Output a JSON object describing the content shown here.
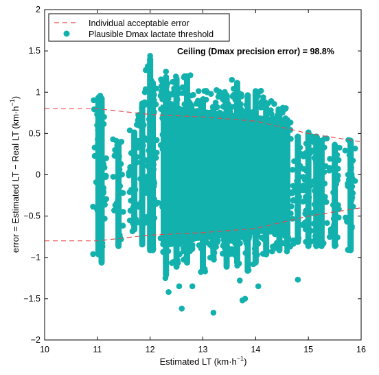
{
  "chart_data": {
    "type": "scatter",
    "xlabel": "Estimated LT (km·h",
    "xlabel_sup": "−1",
    "xlabel_end": ")",
    "ylabel": "error = Estimated LT − Real LT (km·h",
    "ylabel_sup": "−1",
    "ylabel_end": ")",
    "xlim": [
      10,
      16
    ],
    "ylim": [
      -2,
      2
    ],
    "xticks": [
      10,
      11,
      12,
      13,
      14,
      15,
      16
    ],
    "yticks": [
      -2,
      -1.5,
      -1,
      -0.5,
      0,
      0.5,
      1,
      1.5,
      2
    ],
    "xtick_labels": [
      "10",
      "11",
      "12",
      "13",
      "14",
      "15",
      "16"
    ],
    "ytick_labels": [
      "−2",
      "−1.5",
      "−1",
      "−0.5",
      "0",
      "0.5",
      "1",
      "1.5",
      "2"
    ],
    "grid": false,
    "legend_position": "top-left",
    "legend": [
      {
        "label": "Individual acceptable error",
        "style": "dashed-line",
        "color": "#e8474a"
      },
      {
        "label": "Plausible Dmax lactate threshold",
        "style": "marker",
        "color": "#12b1ad"
      }
    ],
    "annotation": "Ceiling (Dmax precision error) =  98.8%",
    "colors": {
      "points": "#12b1ad",
      "error_band": "#e8474a"
    },
    "error_band": {
      "upper": [
        [
          10,
          0.8
        ],
        [
          11,
          0.8
        ],
        [
          12,
          0.73
        ],
        [
          13,
          0.7
        ],
        [
          14,
          0.65
        ],
        [
          15,
          0.5
        ],
        [
          16,
          0.4
        ]
      ],
      "lower": [
        [
          10,
          -0.8
        ],
        [
          11,
          -0.8
        ],
        [
          12,
          -0.73
        ],
        [
          13,
          -0.7
        ],
        [
          14,
          -0.65
        ],
        [
          15,
          -0.5
        ],
        [
          16,
          -0.4
        ]
      ]
    },
    "columns": [
      {
        "x": 11.02,
        "min": -1.0,
        "max": 0.97
      },
      {
        "x": 11.08,
        "min": -1.1,
        "max": 0.96
      },
      {
        "x": 11.4,
        "min": -0.9,
        "max": 0.43
      },
      {
        "x": 11.7,
        "min": -0.7,
        "max": 0.55
      },
      {
        "x": 11.85,
        "min": -0.88,
        "max": 0.9
      },
      {
        "x": 12.0,
        "min": -0.95,
        "max": 1.44
      },
      {
        "x": 12.05,
        "min": -0.95,
        "max": 1.15
      },
      {
        "x": 12.3,
        "min": -1.25,
        "max": 1.22
      },
      {
        "x": 12.5,
        "min": -1.15,
        "max": 1.2
      },
      {
        "x": 12.7,
        "min": -1.1,
        "max": 1.22
      },
      {
        "x": 13.0,
        "min": -1.2,
        "max": 0.95
      },
      {
        "x": 13.2,
        "min": -1.05,
        "max": 0.85
      },
      {
        "x": 13.45,
        "min": -1.15,
        "max": 1.0
      },
      {
        "x": 13.65,
        "min": -1.1,
        "max": 1.15
      },
      {
        "x": 13.85,
        "min": -1.2,
        "max": 1.0
      },
      {
        "x": 14.0,
        "min": -1.1,
        "max": 1.05
      },
      {
        "x": 14.2,
        "min": -1.0,
        "max": 0.85
      },
      {
        "x": 14.45,
        "min": -0.95,
        "max": 0.8
      },
      {
        "x": 14.6,
        "min": -0.9,
        "max": 0.7
      },
      {
        "x": 14.8,
        "min": -0.85,
        "max": 0.5
      },
      {
        "x": 15.0,
        "min": -0.9,
        "max": 0.55
      },
      {
        "x": 15.15,
        "min": -0.9,
        "max": 0.5
      },
      {
        "x": 15.25,
        "min": -0.9,
        "max": 0.45
      },
      {
        "x": 15.5,
        "min": -0.9,
        "max": 0.4
      },
      {
        "x": 15.8,
        "min": -0.95,
        "max": 0.45
      }
    ],
    "outliers": [
      [
        12.35,
        -1.42
      ],
      [
        12.6,
        -1.62
      ],
      [
        13.2,
        -1.67
      ],
      [
        13.75,
        -1.52
      ],
      [
        13.8,
        -1.5
      ],
      [
        12.55,
        -1.35
      ],
      [
        12.8,
        -1.35
      ],
      [
        14.05,
        -1.35
      ],
      [
        13.7,
        -1.28
      ],
      [
        14.8,
        -1.27
      ],
      [
        12.3,
        1.25
      ],
      [
        12.7,
        1.15
      ],
      [
        13.55,
        1.15
      ],
      [
        11.9,
        1.0
      ],
      [
        13.35,
        0.95
      ],
      [
        12.0,
        1.44
      ]
    ]
  }
}
